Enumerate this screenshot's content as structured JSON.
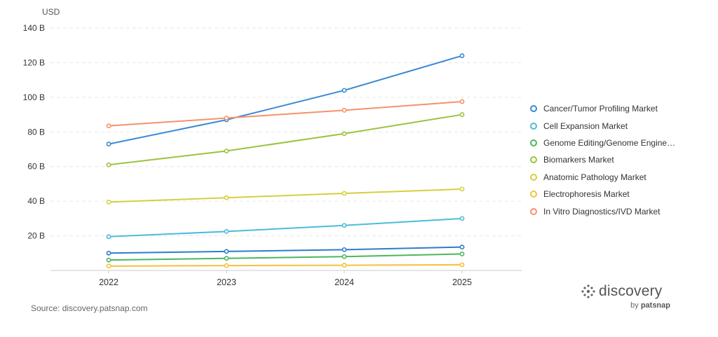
{
  "chart_data": {
    "type": "line",
    "title": "",
    "ylabel": "USD",
    "xlabel": "",
    "x": [
      "2022",
      "2023",
      "2024",
      "2025"
    ],
    "ylim": [
      0,
      140
    ],
    "yticks": [
      {
        "value": 20,
        "label": "20 B"
      },
      {
        "value": 40,
        "label": "40 B"
      },
      {
        "value": 60,
        "label": "60 B"
      },
      {
        "value": 80,
        "label": "80 B"
      },
      {
        "value": 100,
        "label": "100 B"
      },
      {
        "value": 120,
        "label": "120 B"
      },
      {
        "value": 140,
        "label": "140 B"
      }
    ],
    "grid": true,
    "legend_position": "right",
    "series": [
      {
        "name": "Cancer/Tumor Profiling Market",
        "color": "#3a8ad4",
        "values": [
          73,
          87,
          104,
          124
        ]
      },
      {
        "name": "Cell Expansion Market",
        "color": "#4cbcd9",
        "values": [
          19.5,
          22.5,
          26,
          30
        ]
      },
      {
        "name": "Genome Editing/Genome Engine…",
        "color": "#4cb75c",
        "values": [
          6,
          7,
          8,
          9.5
        ]
      },
      {
        "name": "Biomarkers Market",
        "color": "#9cc23f",
        "values": [
          61,
          69,
          79,
          90
        ]
      },
      {
        "name": "Anatomic Pathology Market",
        "color": "#d6cf3e",
        "values": [
          39.5,
          42,
          44.5,
          47
        ]
      },
      {
        "name": "Electrophoresis Market",
        "color": "#f5c13c",
        "values": [
          2.5,
          2.8,
          3,
          3.3
        ]
      },
      {
        "name": "In Vitro Diagnostics/IVD Market",
        "color": "#f6916b",
        "values": [
          83.5,
          88,
          92.5,
          97.5
        ]
      },
      {
        "name": "",
        "color": "#2f7cc9",
        "values": [
          10,
          11,
          12,
          13.5
        ]
      }
    ]
  },
  "footer": {
    "source": "Source: discovery.patsnap.com",
    "brand_name": "discovery",
    "brand_by": "by",
    "brand_company": "patsnap"
  },
  "icons": {
    "brand_logo": "discovery-logo-icon"
  }
}
